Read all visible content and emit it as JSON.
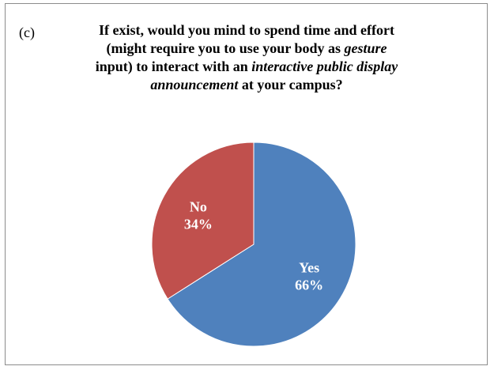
{
  "panel_label": "(c)",
  "title": {
    "t1": "If exist, would you mind to spend time and effort",
    "t2": "(might require you to use your body as ",
    "t2i": "gesture",
    "t3a": "input) to interact with an ",
    "t3i": "interactive public display",
    "t4i": "announcement",
    "t4b": " at your campus?"
  },
  "chart_data": {
    "type": "pie",
    "slices": [
      {
        "label": "Yes",
        "value": 66,
        "value_label": "66%",
        "color": "#4f81bd"
      },
      {
        "label": "No",
        "value": 34,
        "value_label": "34%",
        "color": "#c0504d"
      }
    ]
  }
}
